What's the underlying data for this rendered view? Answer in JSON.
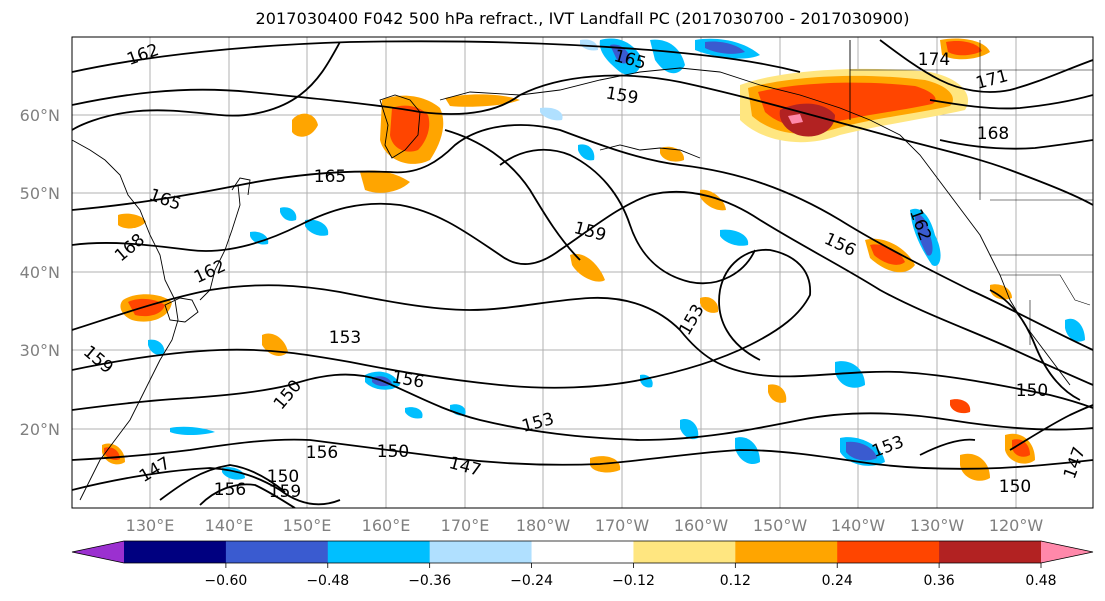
{
  "title": "2017030400 F042 500 hPa refract., IVT Landfall PC (2017030700 - 2017030900)",
  "lat_labels": [
    "60°N",
    "50°N",
    "40°N",
    "30°N",
    "20°N"
  ],
  "lon_labels": [
    "130°E",
    "140°E",
    "150°E",
    "160°E",
    "170°E",
    "180°W",
    "170°W",
    "160°W",
    "150°W",
    "140°W",
    "130°W",
    "120°W"
  ],
  "colorbar": {
    "tick_labels": [
      "−0.60",
      "−0.48",
      "−0.36",
      "−0.24",
      "−0.12",
      "0.12",
      "0.24",
      "0.36",
      "0.48",
      "0.60"
    ],
    "colors": [
      "#9b30d0",
      "#000080",
      "#3a5bd0",
      "#00bfff",
      "#b0e0ff",
      "#ffffff",
      "#ffe680",
      "#ffa500",
      "#ff4500",
      "#b22222",
      "#ff88aa"
    ]
  },
  "contour_labels": [
    {
      "text": "162"
    },
    {
      "text": "165"
    },
    {
      "text": "159"
    },
    {
      "text": "174"
    },
    {
      "text": "171"
    },
    {
      "text": "168"
    },
    {
      "text": "165"
    },
    {
      "text": "165"
    },
    {
      "text": "168"
    },
    {
      "text": "162"
    },
    {
      "text": "159"
    },
    {
      "text": "162"
    },
    {
      "text": "156"
    },
    {
      "text": "153"
    },
    {
      "text": "153"
    },
    {
      "text": "156"
    },
    {
      "text": "159"
    },
    {
      "text": "150"
    },
    {
      "text": "150"
    },
    {
      "text": "153"
    },
    {
      "text": "156"
    },
    {
      "text": "150"
    },
    {
      "text": "147"
    },
    {
      "text": "147"
    },
    {
      "text": "153"
    },
    {
      "text": "150"
    },
    {
      "text": "147"
    },
    {
      "text": "150"
    },
    {
      "text": "156"
    },
    {
      "text": "159"
    }
  ]
}
